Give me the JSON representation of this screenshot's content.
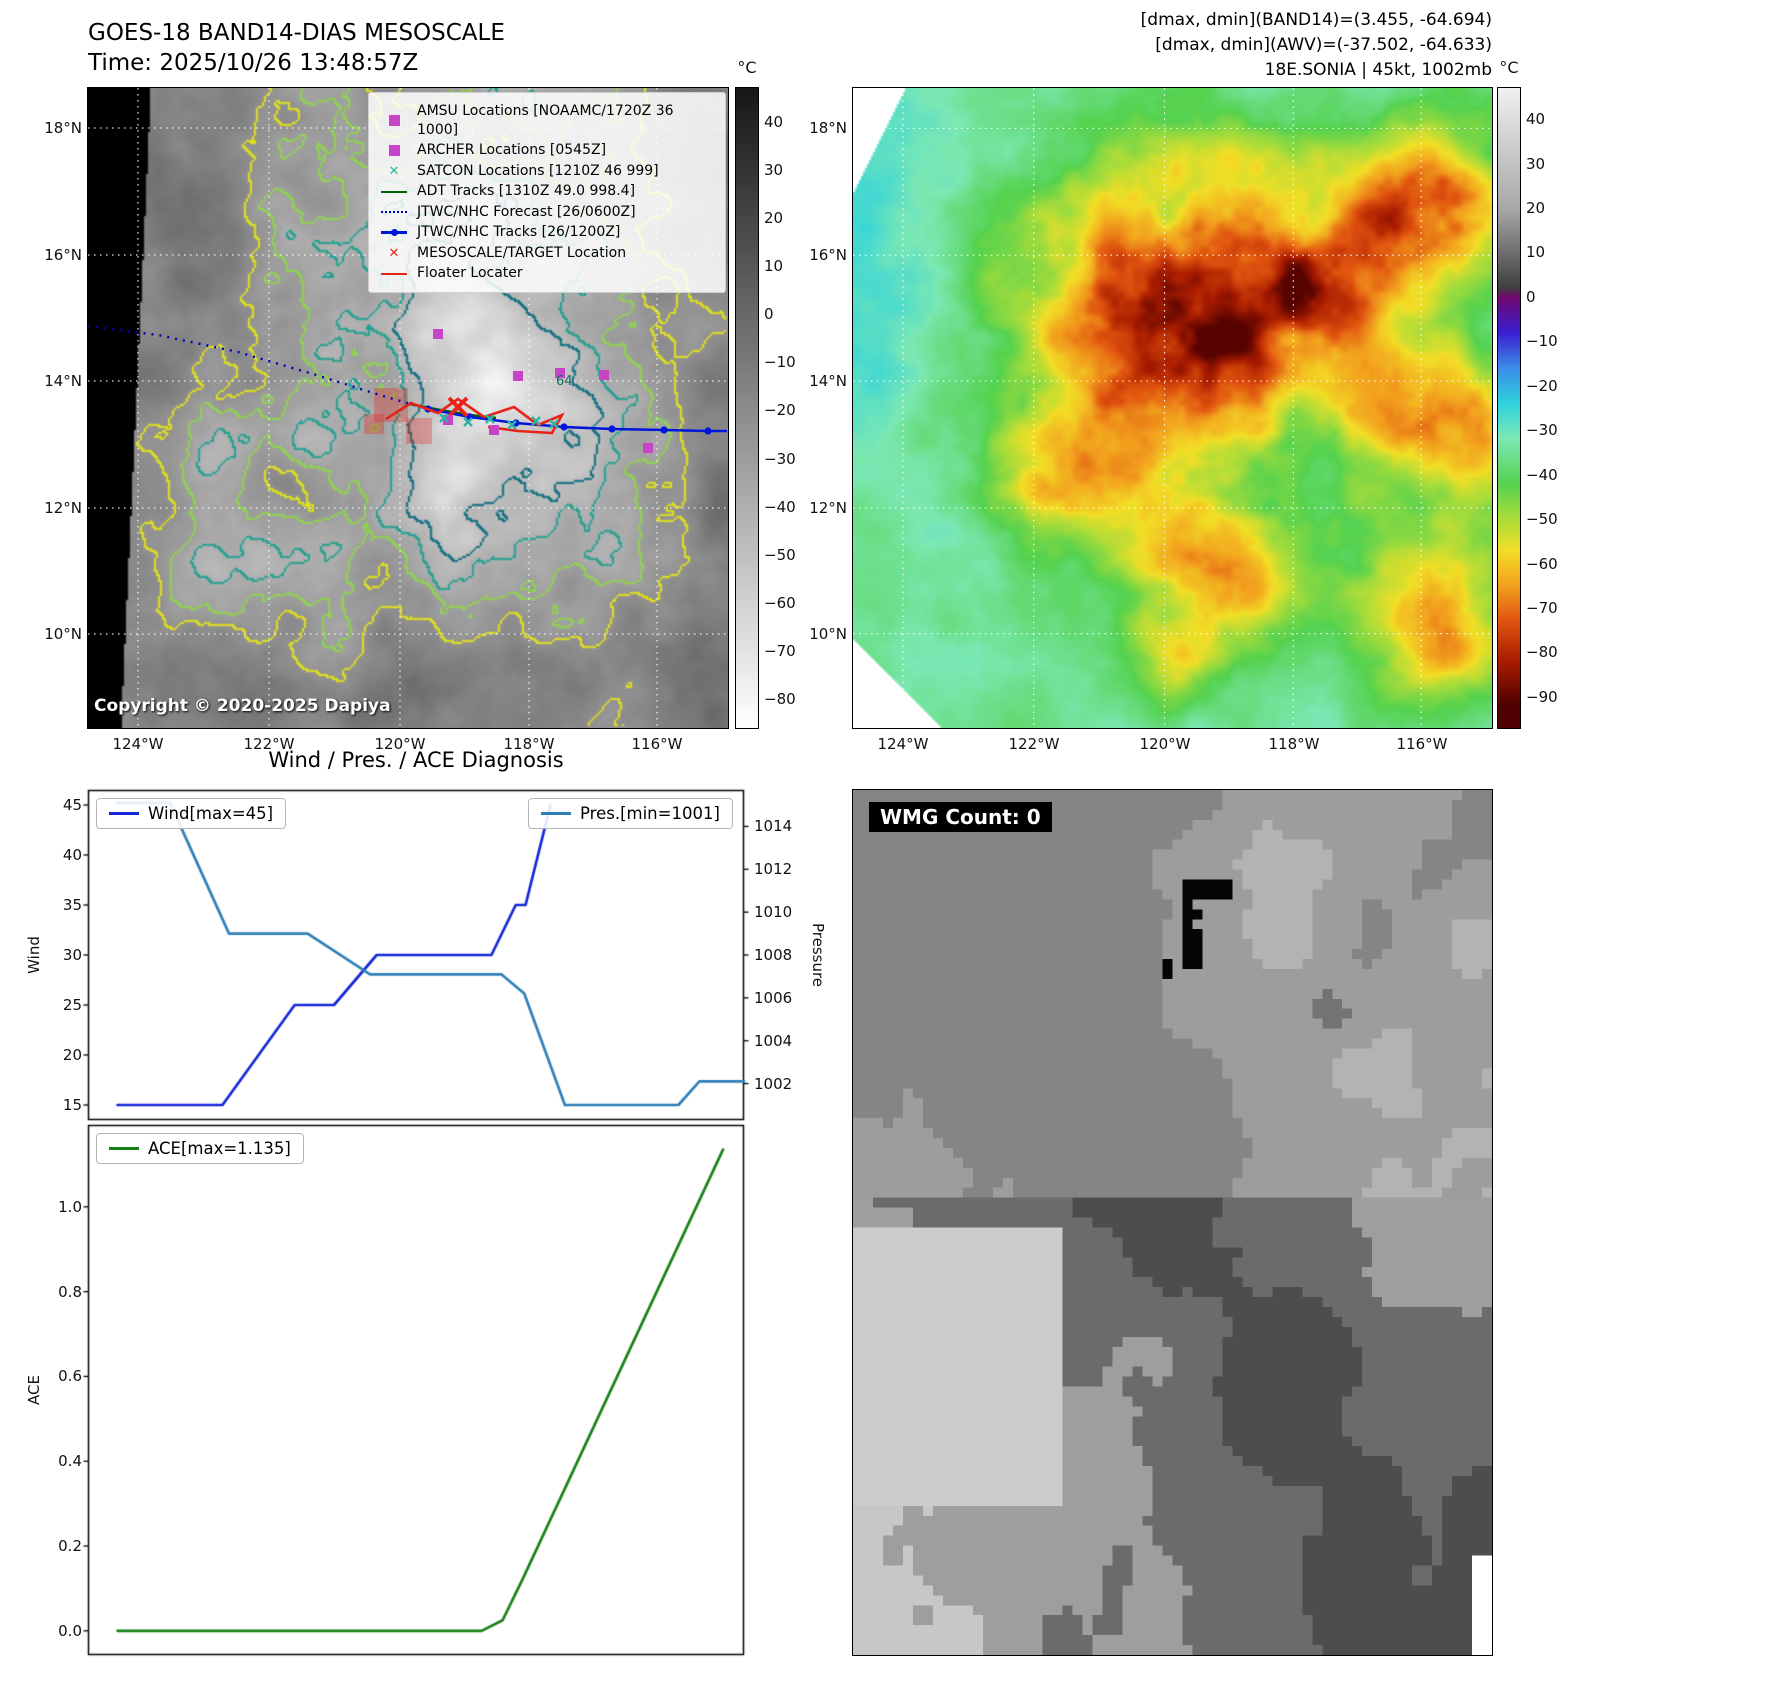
{
  "panel_band14": {
    "title_line1": "GOES-18 BAND14-DIAS MESOSCALE",
    "title_line2": "Time: 2025/10/26 13:48:57Z",
    "copyright": "Copyright © 2020-2025 Dapiya",
    "annotation": "64",
    "legend": [
      {
        "label": "AMSU Locations [NOAAMC/1720Z 36 1000]",
        "marker": "square",
        "color": "#c743c7"
      },
      {
        "label": "ARCHER Locations [0545Z]",
        "marker": "square",
        "color": "#c743c7"
      },
      {
        "label": "SATCON Locations [1210Z 46 999]",
        "marker": "x",
        "color": "#2fb3a4"
      },
      {
        "label": "ADT Tracks [1310Z 49.0 998.4]",
        "marker": "line",
        "color": "#006400"
      },
      {
        "label": "JTWC/NHC Forecast [26/0600Z]",
        "marker": "dotted-line",
        "color": "#0000bb"
      },
      {
        "label": "JTWC/NHC Tracks [26/1200Z]",
        "marker": "line-dot",
        "color": "#0016d9"
      },
      {
        "label": "MESOSCALE/TARGET Location",
        "marker": "x",
        "color": "#e8231a"
      },
      {
        "label": "Floater Locater",
        "marker": "line",
        "color": "#e8231a"
      }
    ],
    "lat_ticks": [
      "18°N",
      "16°N",
      "14°N",
      "12°N",
      "10°N"
    ],
    "lon_ticks": [
      "124°W",
      "122°W",
      "120°W",
      "118°W",
      "116°W"
    ],
    "colorbar": {
      "unit": "°C",
      "ticks": [
        40,
        30,
        20,
        10,
        0,
        -10,
        -20,
        -30,
        -40,
        -50,
        -60,
        -70,
        -80
      ],
      "vmax": 47,
      "vmin": -86,
      "colormap": [
        {
          "t": 47,
          "c": "#161616"
        },
        {
          "t": -86,
          "c": "#ffffff"
        }
      ]
    },
    "contour_colors": [
      "#e3e31a",
      "#8fd44d",
      "#1fa08f",
      "#0b6b7d"
    ]
  },
  "panel_awv": {
    "header_line1": "[dmax, dmin](BAND14)=(3.455, -64.694)",
    "header_line2": "[dmax, dmin](AWV)=(-37.502, -64.633)",
    "header_line3": "18E.SONIA | 45kt, 1002mb",
    "lat_ticks": [
      "18°N",
      "16°N",
      "14°N",
      "12°N",
      "10°N"
    ],
    "lon_ticks": [
      "124°W",
      "122°W",
      "120°W",
      "118°W",
      "116°W"
    ],
    "colorbar": {
      "unit": "°C",
      "ticks": [
        40,
        30,
        20,
        10,
        0,
        -10,
        -20,
        -30,
        -40,
        -50,
        -60,
        -70,
        -80,
        -90
      ],
      "vmax": 47,
      "vmin": -97,
      "colormap": [
        {
          "t": 47,
          "c": "#f0f0f0"
        },
        {
          "t": 20,
          "c": "#a8a8a8"
        },
        {
          "t": 2,
          "c": "#3f3f3f"
        },
        {
          "t": 0,
          "c": "#70086e"
        },
        {
          "t": -8,
          "c": "#3a1ed0"
        },
        {
          "t": -16,
          "c": "#3c8ce8"
        },
        {
          "t": -24,
          "c": "#2ed2dc"
        },
        {
          "t": -32,
          "c": "#7ce8b4"
        },
        {
          "t": -42,
          "c": "#55d24f"
        },
        {
          "t": -50,
          "c": "#aadc3a"
        },
        {
          "t": -57,
          "c": "#f2de26"
        },
        {
          "t": -65,
          "c": "#f2a01e"
        },
        {
          "t": -73,
          "c": "#e0530f"
        },
        {
          "t": -82,
          "c": "#a81c00"
        },
        {
          "t": -92,
          "c": "#4e0000"
        }
      ]
    }
  },
  "panel_wmg": {
    "label": "WMG Count: 0"
  },
  "chart_data": [
    {
      "type": "line",
      "title": "Wind / Pres. / ACE Diagnosis",
      "xlabel": "",
      "ylabel_left": "Wind",
      "ylabel_right": "Pressure",
      "ylim_left": [
        13.5,
        46.5
      ],
      "ylim_right": [
        1000.3,
        1015.7
      ],
      "yticks_left": [
        15,
        20,
        25,
        30,
        35,
        40,
        45
      ],
      "yticks_right": [
        1002,
        1004,
        1006,
        1008,
        1010,
        1012,
        1014
      ],
      "grid": false,
      "legend_position": "upper-left and upper-right",
      "series": [
        {
          "name": "Wind[max=45]",
          "axis": "left",
          "color": "#1526d6",
          "points": [
            [
              0.045,
              15
            ],
            [
              0.205,
              15
            ],
            [
              0.315,
              25
            ],
            [
              0.375,
              25
            ],
            [
              0.44,
              30
            ],
            [
              0.615,
              30
            ],
            [
              0.652,
              35
            ],
            [
              0.667,
              35
            ],
            [
              0.705,
              45
            ]
          ]
        },
        {
          "name": "Pres.[min=1001]",
          "axis": "right",
          "color": "#2e7fb8",
          "points": [
            [
              0.045,
              1015.1
            ],
            [
              0.125,
              1015.1
            ],
            [
              0.215,
              1009
            ],
            [
              0.335,
              1009
            ],
            [
              0.43,
              1007.1
            ],
            [
              0.63,
              1007.1
            ],
            [
              0.665,
              1006.2
            ],
            [
              0.727,
              1001
            ],
            [
              0.9,
              1001
            ],
            [
              0.932,
              1002.1
            ],
            [
              1.0,
              1002.1
            ]
          ]
        }
      ]
    },
    {
      "type": "line",
      "title": "",
      "xlabel": "",
      "ylabel": "ACE",
      "ylim": [
        -0.057,
        1.193
      ],
      "yticks": [
        "0.0",
        "0.2",
        "0.4",
        "0.6",
        "0.8",
        "1.0"
      ],
      "grid": false,
      "legend_position": "upper-left",
      "series": [
        {
          "name": "ACE[max=1.135]",
          "color": "#178017",
          "points": [
            [
              0.045,
              0
            ],
            [
              0.6,
              0
            ],
            [
              0.632,
              0.025
            ],
            [
              0.662,
              0.12
            ],
            [
              0.968,
              1.135
            ]
          ]
        }
      ]
    }
  ]
}
